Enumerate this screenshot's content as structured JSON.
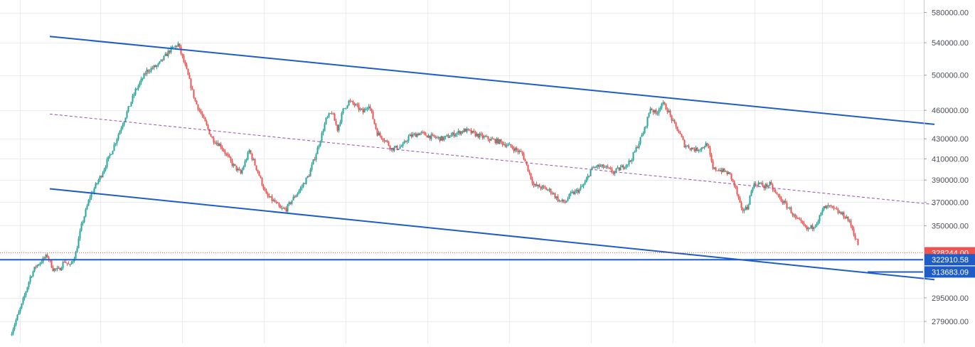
{
  "chart_data": {
    "type": "candlestick",
    "title": "",
    "xlabel": "",
    "ylabel": "",
    "grid": true,
    "y_scale": "log",
    "ylim": [
      265000,
      590000
    ],
    "y_ticks": [
      {
        "value": 580000,
        "label": "580000.00"
      },
      {
        "value": 540000,
        "label": "540000.00"
      },
      {
        "value": 500000,
        "label": "500000.00"
      },
      {
        "value": 460000,
        "label": "460000.00"
      },
      {
        "value": 430000,
        "label": "430000.00"
      },
      {
        "value": 410000,
        "label": "410000.00"
      },
      {
        "value": 390000,
        "label": "390000.00"
      },
      {
        "value": 370000,
        "label": "370000.00"
      },
      {
        "value": 350000,
        "label": "350000.00"
      },
      {
        "value": 295000,
        "label": "295000.00"
      },
      {
        "value": 279000,
        "label": "279000.00"
      }
    ],
    "price_series": {
      "up_color": "#26a69a",
      "down_color": "#ef5350",
      "close_path": [
        [
          0,
          270000
        ],
        [
          8,
          290000
        ],
        [
          14,
          310000
        ],
        [
          18,
          318000
        ],
        [
          22,
          322000
        ],
        [
          26,
          326000
        ],
        [
          30,
          316000
        ],
        [
          34,
          315000
        ],
        [
          38,
          322000
        ],
        [
          42,
          318000
        ],
        [
          46,
          328000
        ],
        [
          50,
          350000
        ],
        [
          56,
          375000
        ],
        [
          64,
          395000
        ],
        [
          72,
          420000
        ],
        [
          80,
          450000
        ],
        [
          88,
          482000
        ],
        [
          96,
          505000
        ],
        [
          104,
          512000
        ],
        [
          112,
          530000
        ],
        [
          118,
          538000
        ],
        [
          124,
          505000
        ],
        [
          130,
          470000
        ],
        [
          136,
          450000
        ],
        [
          142,
          430000
        ],
        [
          148,
          423000
        ],
        [
          156,
          405000
        ],
        [
          162,
          396000
        ],
        [
          168,
          418000
        ],
        [
          174,
          398000
        ],
        [
          180,
          376000
        ],
        [
          186,
          370000
        ],
        [
          190,
          364000
        ],
        [
          194,
          364000
        ],
        [
          198,
          372000
        ],
        [
          204,
          382000
        ],
        [
          210,
          395000
        ],
        [
          216,
          420000
        ],
        [
          222,
          450000
        ],
        [
          226,
          458000
        ],
        [
          230,
          440000
        ],
        [
          234,
          460000
        ],
        [
          238,
          470000
        ],
        [
          242,
          466000
        ],
        [
          248,
          458000
        ],
        [
          252,
          467000
        ],
        [
          258,
          436000
        ],
        [
          264,
          428000
        ],
        [
          268,
          420000
        ],
        [
          272,
          421000
        ],
        [
          276,
          423000
        ],
        [
          280,
          432000
        ],
        [
          288,
          436000
        ],
        [
          296,
          432000
        ],
        [
          304,
          430000
        ],
        [
          312,
          435000
        ],
        [
          320,
          439000
        ],
        [
          328,
          434000
        ],
        [
          336,
          430000
        ],
        [
          344,
          427000
        ],
        [
          352,
          422000
        ],
        [
          360,
          415000
        ],
        [
          364,
          400000
        ],
        [
          368,
          385000
        ],
        [
          374,
          383000
        ],
        [
          380,
          380000
        ],
        [
          386,
          371000
        ],
        [
          390,
          370000
        ],
        [
          394,
          377000
        ],
        [
          400,
          381000
        ],
        [
          404,
          387000
        ],
        [
          408,
          399000
        ],
        [
          412,
          403000
        ],
        [
          418,
          402000
        ],
        [
          424,
          397000
        ],
        [
          430,
          402000
        ],
        [
          436,
          408000
        ],
        [
          440,
          420000
        ],
        [
          446,
          440000
        ],
        [
          450,
          463000
        ],
        [
          454,
          456000
        ],
        [
          458,
          468000
        ],
        [
          462,
          461000
        ],
        [
          466,
          447000
        ],
        [
          470,
          437000
        ],
        [
          474,
          424000
        ],
        [
          478,
          421000
        ],
        [
          482,
          419000
        ],
        [
          486,
          421000
        ],
        [
          490,
          425000
        ],
        [
          494,
          400000
        ],
        [
          498,
          400000
        ],
        [
          502,
          398000
        ],
        [
          506,
          395000
        ],
        [
          510,
          382000
        ],
        [
          514,
          363000
        ],
        [
          518,
          365000
        ],
        [
          522,
          385000
        ],
        [
          526,
          387000
        ],
        [
          530,
          384000
        ],
        [
          534,
          386000
        ],
        [
          538,
          378000
        ],
        [
          542,
          372000
        ],
        [
          548,
          364000
        ],
        [
          552,
          356000
        ],
        [
          556,
          352000
        ],
        [
          560,
          347000
        ],
        [
          564,
          349000
        ],
        [
          568,
          355000
        ],
        [
          572,
          365000
        ],
        [
          576,
          366000
        ],
        [
          580,
          363000
        ],
        [
          584,
          360000
        ],
        [
          588,
          357000
        ],
        [
          592,
          348000
        ],
        [
          594,
          340000
        ],
        [
          596,
          335000
        ]
      ],
      "last_price": "328244.00",
      "last_price_value": 328244
    },
    "horizontal_levels": [
      {
        "value": 322910.58,
        "label": "322910.58",
        "color": "#1e5dc8"
      },
      {
        "value": 313683.09,
        "label": "313683.09",
        "color": "#1e5dc8",
        "starts_at_bar": 603
      }
    ],
    "channel": {
      "color": "#1e5dc8",
      "upper": [
        [
          28,
          548000
        ],
        [
          650,
          445000
        ]
      ],
      "lower": [
        [
          28,
          382000
        ],
        [
          650,
          308000
        ]
      ],
      "midline": {
        "color": "#9c4fb0",
        "points": [
          [
            28,
            456000
          ],
          [
            650,
            368000
          ]
        ]
      }
    }
  }
}
